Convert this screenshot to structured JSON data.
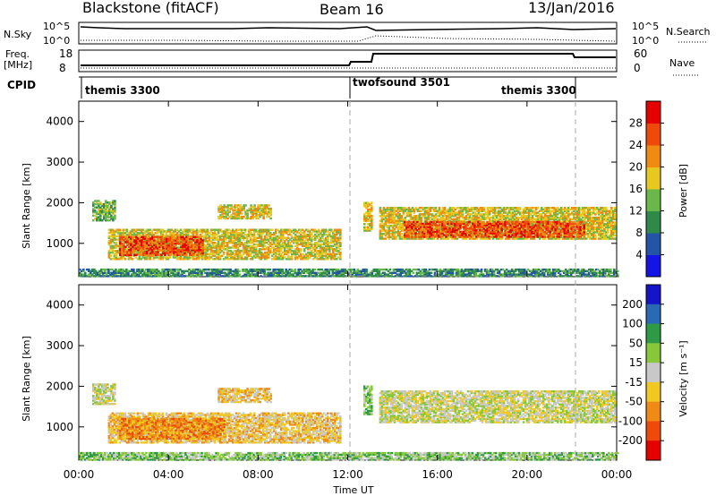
{
  "header": {
    "title": "Blackstone (fitACF)",
    "beam": "Beam 16",
    "date": "13/Jan/2016"
  },
  "panels": {
    "nsky_label": "N.Sky",
    "nsearch_label": "N.Search",
    "nsky_ticks": [
      "10^5",
      "10^0"
    ],
    "nsearch_ticks": [
      "10^5",
      "10^0"
    ],
    "freq_label": "Freq.",
    "freq_unit": "[MHz]",
    "freq_ticks": [
      "18",
      "8"
    ],
    "nave_label": "Nave",
    "nave_ticks": [
      "60",
      "0"
    ],
    "cpid_label": "CPID",
    "cpid_segments": [
      "themis 3300",
      "twofsound 3501",
      "themis 3300"
    ]
  },
  "chart_data": [
    {
      "type": "heatmap",
      "name": "power",
      "xlabel": "Time UT",
      "ylabel": "Slant Range [km]",
      "yticks": [
        "1000",
        "2000",
        "3000",
        "4000"
      ],
      "ylim": [
        180,
        4500
      ],
      "xticks": [
        "00:00",
        "04:00",
        "08:00",
        "12:00",
        "16:00",
        "20:00",
        "00:00"
      ],
      "colorbar": {
        "label": "Power [dB]",
        "ticks": [
          "4",
          "8",
          "12",
          "16",
          "20",
          "24",
          "28"
        ],
        "colors": [
          "#1414e6",
          "#2454a8",
          "#2f8a4a",
          "#6ab84a",
          "#e6c81e",
          "#f08a10",
          "#f04a0a",
          "#e60000"
        ]
      },
      "regions": [
        {
          "t0": 0.6,
          "t1": 1.6,
          "r0": 1550,
          "r1": 2050,
          "level": 3
        },
        {
          "t0": 1.3,
          "t1": 11.7,
          "r0": 600,
          "r1": 1350,
          "level": 4
        },
        {
          "t0": 1.8,
          "t1": 5.5,
          "r0": 700,
          "r1": 1150,
          "level": 6
        },
        {
          "t0": 6.2,
          "t1": 8.6,
          "r0": 1600,
          "r1": 1950,
          "level": 4
        },
        {
          "t0": 12.7,
          "t1": 13.1,
          "r0": 1300,
          "r1": 2000,
          "level": 4
        },
        {
          "t0": 13.4,
          "t1": 23.9,
          "r0": 1100,
          "r1": 1900,
          "level": 4
        },
        {
          "t0": 14.5,
          "t1": 22.5,
          "r0": 1150,
          "r1": 1550,
          "level": 6
        },
        {
          "t0": 0,
          "t1": 24,
          "r0": 180,
          "r1": 380,
          "level": 2
        }
      ]
    },
    {
      "type": "heatmap",
      "name": "velocity",
      "xlabel": "Time UT",
      "ylabel": "Slant Range [km]",
      "yticks": [
        "1000",
        "2000",
        "3000",
        "4000"
      ],
      "ylim": [
        180,
        4500
      ],
      "xticks": [
        "00:00",
        "04:00",
        "08:00",
        "12:00",
        "16:00",
        "20:00",
        "00:00"
      ],
      "colorbar": {
        "label": "Velocity [m s⁻¹]",
        "ticks": [
          "200",
          "100",
          "50",
          "15",
          "-15",
          "-50",
          "-100",
          "-200"
        ],
        "colors": [
          "#1414c8",
          "#2a6ab4",
          "#2e9a46",
          "#86c83a",
          "#c8c8c8",
          "#f0c820",
          "#f08a14",
          "#f04a0a",
          "#e60000"
        ]
      },
      "regions": [
        {
          "t0": 0.6,
          "t1": 1.6,
          "r0": 1550,
          "r1": 2050,
          "level": 4
        },
        {
          "t0": 1.3,
          "t1": 11.7,
          "r0": 600,
          "r1": 1350,
          "level": 5
        },
        {
          "t0": 1.8,
          "t1": 6.5,
          "r0": 700,
          "r1": 1200,
          "level": 6
        },
        {
          "t0": 6.2,
          "t1": 8.6,
          "r0": 1600,
          "r1": 1950,
          "level": 5
        },
        {
          "t0": 12.7,
          "t1": 13.1,
          "r0": 1300,
          "r1": 2000,
          "level": 3
        },
        {
          "t0": 13.4,
          "t1": 23.9,
          "r0": 1100,
          "r1": 1900,
          "level": 4
        },
        {
          "t0": 0,
          "t1": 24,
          "r0": 180,
          "r1": 380,
          "level": 3
        }
      ]
    }
  ]
}
